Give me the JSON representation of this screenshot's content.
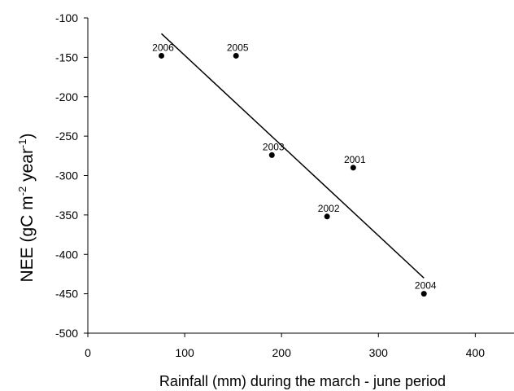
{
  "chart_data": {
    "type": "scatter",
    "title": "",
    "xlabel": "Rainfall (mm) during the march - june period",
    "ylabel": {
      "prefix": "NEE (gC m",
      "sup1": "-2",
      "middle": " year",
      "sup2": "-1",
      "suffix": ")"
    },
    "xlim": [
      0,
      440
    ],
    "ylim": [
      -500,
      -100
    ],
    "xticks": [
      0,
      100,
      200,
      300,
      400
    ],
    "yticks": [
      -100,
      -150,
      -200,
      -250,
      -300,
      -350,
      -400,
      -450,
      -500
    ],
    "grid": false,
    "points": [
      {
        "label": "2006",
        "x": 76,
        "y": -148
      },
      {
        "label": "2005",
        "x": 153,
        "y": -148
      },
      {
        "label": "2003",
        "x": 190,
        "y": -274
      },
      {
        "label": "2001",
        "x": 274,
        "y": -290
      },
      {
        "label": "2002",
        "x": 247,
        "y": -352
      },
      {
        "label": "2004",
        "x": 347,
        "y": -450
      }
    ],
    "trendline": {
      "x": [
        76,
        347
      ],
      "y": [
        -120,
        -430
      ]
    }
  }
}
